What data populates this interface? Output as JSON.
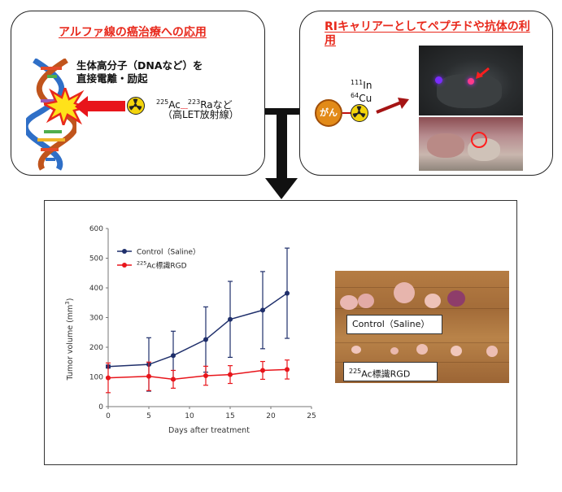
{
  "left_panel": {
    "title": "アルファ線の癌治療への応用",
    "line1": "生体高分子（DNAなど）を",
    "line2": "直接電離・励起",
    "iso1_mass": "225",
    "iso1_sym": "Ac",
    "iso2_mass": "223",
    "iso2_sym": "Raなど",
    "paren": "（高LET放射線）"
  },
  "right_panel": {
    "title": "RIキャリアーとしてペプチドや抗体の利用",
    "cancer_label": "がん",
    "iso1_mass": "111",
    "iso1_sym": "In",
    "iso2_mass": "64",
    "iso2_sym": "Cu"
  },
  "photo": {
    "control_label": "Control（Saline）",
    "treated_mass": "225",
    "treated_label": "Ac標識RGD"
  },
  "chart_data": {
    "type": "line",
    "xlabel": "Days after treatment",
    "ylabel_prefix": "Tumor volume (mm",
    "ylabel_exp": "3",
    "ylabel_suffix": ")",
    "xlim": [
      0,
      25
    ],
    "ylim": [
      0,
      600
    ],
    "xticks": [
      0,
      5,
      10,
      15,
      20,
      25
    ],
    "yticks": [
      0,
      100,
      200,
      300,
      400,
      500,
      600
    ],
    "legend_position": "top-left",
    "series": [
      {
        "name": "Control（Saline）",
        "color": "#1f2f6b",
        "x": [
          0,
          5,
          8,
          12,
          15,
          19,
          22
        ],
        "y": [
          135,
          142,
          172,
          226,
          294,
          325,
          382
        ],
        "err": [
          5,
          90,
          82,
          110,
          128,
          130,
          152
        ]
      },
      {
        "name_mass": "225",
        "name": "Ac標識RGD",
        "color": "#e8151b",
        "x": [
          0,
          5,
          8,
          12,
          15,
          19,
          22
        ],
        "y": [
          97,
          102,
          92,
          104,
          108,
          122,
          125
        ],
        "err": [
          50,
          48,
          30,
          32,
          30,
          30,
          32
        ]
      }
    ]
  }
}
